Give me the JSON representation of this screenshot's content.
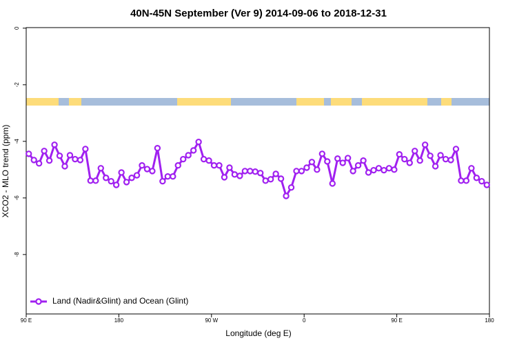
{
  "chart_data": {
    "type": "line",
    "title": "40N-45N September (Ver 9)   2014-09-06 to 2018-12-31",
    "xlabel": "Longitude (deg E)",
    "ylabel": "XCO2 - MLO trend (ppm)",
    "xlim": [
      90,
      540
    ],
    "ylim": [
      -10.1,
      0.02
    ],
    "xticks": [
      {
        "value": 90,
        "label": "90 E"
      },
      180,
      {
        "value": 270,
        "label": "90 W"
      },
      {
        "value": 360,
        "label": "0"
      },
      {
        "value": 450,
        "label": "90 E"
      },
      {
        "value": 540,
        "label": "180"
      }
    ],
    "yticks": [
      0,
      -2,
      -4,
      -6,
      -8
    ],
    "legend": "bottom-left",
    "x": [
      92.5,
      97.5,
      102.5,
      107.5,
      112.5,
      117.5,
      122.5,
      127.5,
      132.5,
      137.5,
      142.5,
      147.5,
      152.5,
      157.5,
      162.5,
      167.5,
      172.5,
      177.5,
      182.5,
      187.5,
      192.5,
      197.5,
      202.5,
      207.5,
      212.5,
      217.5,
      222.5,
      227.5,
      232.5,
      237.5,
      242.5,
      247.5,
      252.5,
      257.5,
      262.5,
      267.5,
      272.5,
      277.5,
      282.5,
      287.5,
      292.5,
      297.5,
      302.5,
      307.5,
      312.5,
      317.5,
      322.5,
      327.5,
      332.5,
      337.5,
      342.5,
      347.5,
      352.5,
      357.5,
      362.5,
      367.5,
      372.5,
      377.5,
      382.5,
      387.5,
      392.5,
      397.5,
      402.5,
      407.5,
      412.5,
      417.5,
      422.5,
      427.5,
      432.5,
      437.5,
      442.5,
      447.5,
      452.5,
      457.5,
      462.5,
      467.5,
      472.5,
      477.5,
      482.5,
      487.5,
      492.5,
      497.5,
      502.5,
      507.5,
      512.5,
      517.5,
      522.5,
      527.5,
      532.5,
      537.5
    ],
    "series": [
      {
        "name": "Land (Nadir&Glint) and Ocean (Glint)",
        "color": "#a020f0",
        "values": [
          -4.44,
          -4.66,
          -4.78,
          -4.34,
          -4.68,
          -4.12,
          -4.51,
          -4.88,
          -4.49,
          -4.63,
          -4.66,
          -4.27,
          -5.39,
          -5.39,
          -4.95,
          -5.29,
          -5.41,
          -5.54,
          -5.1,
          -5.44,
          -5.29,
          -5.2,
          -4.85,
          -4.98,
          -5.05,
          -4.24,
          -5.41,
          -5.24,
          -5.24,
          -4.85,
          -4.63,
          -4.49,
          -4.32,
          -4.02,
          -4.63,
          -4.68,
          -4.85,
          -4.85,
          -5.27,
          -4.93,
          -5.17,
          -5.22,
          -5.05,
          -5.05,
          -5.07,
          -5.12,
          -5.39,
          -5.34,
          -5.15,
          -5.32,
          -5.93,
          -5.63,
          -5.05,
          -5.05,
          -4.93,
          -4.73,
          -5.0,
          -4.44,
          -4.71,
          -5.49,
          -4.61,
          -4.76,
          -4.59,
          -5.05,
          -4.85,
          -4.68,
          -5.1,
          -5.02,
          -4.95,
          -5.02,
          -4.95,
          -5.0,
          -4.46,
          -4.63,
          -4.76,
          -4.34,
          -4.68,
          -4.12,
          -4.51,
          -4.88,
          -4.49,
          -4.63,
          -4.66,
          -4.27,
          -5.39,
          -5.39,
          -4.95,
          -5.29,
          -5.41,
          -5.54
        ]
      }
    ]
  }
}
